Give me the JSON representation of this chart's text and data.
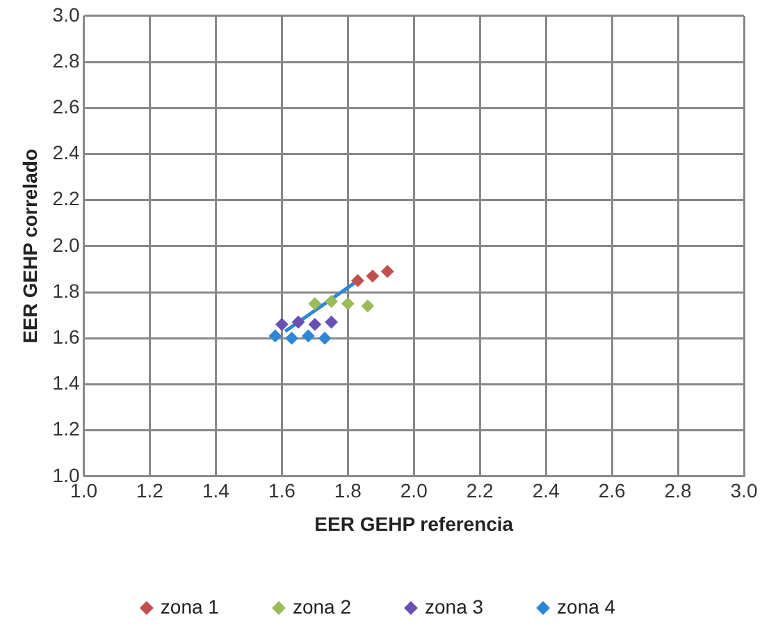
{
  "chart_data": {
    "type": "scatter",
    "xlabel": "EER GEHP referencia",
    "ylabel": "EER GEHP correlado",
    "xlim": [
      1.0,
      3.0
    ],
    "ylim": [
      1.0,
      3.0
    ],
    "xticks": [
      {
        "value": 1.0,
        "label": "1.0"
      },
      {
        "value": 1.2,
        "label": "1.2"
      },
      {
        "value": 1.4,
        "label": "1.4"
      },
      {
        "value": 1.6,
        "label": "1.6"
      },
      {
        "value": 1.8,
        "label": "1.8"
      },
      {
        "value": 2.0,
        "label": "2.0"
      },
      {
        "value": 2.2,
        "label": "2.2"
      },
      {
        "value": 2.4,
        "label": "2.4"
      },
      {
        "value": 2.6,
        "label": "2.6"
      },
      {
        "value": 2.8,
        "label": "2.8"
      },
      {
        "value": 3.0,
        "label": "3.0"
      }
    ],
    "yticks": [
      {
        "value": 1.0,
        "label": "1.0"
      },
      {
        "value": 1.2,
        "label": "1.2"
      },
      {
        "value": 1.4,
        "label": "1.4"
      },
      {
        "value": 1.6,
        "label": "1.6"
      },
      {
        "value": 1.8,
        "label": "1.8"
      },
      {
        "value": 2.0,
        "label": "2.0"
      },
      {
        "value": 2.2,
        "label": "2.2"
      },
      {
        "value": 2.4,
        "label": "2.4"
      },
      {
        "value": 2.6,
        "label": "2.6"
      },
      {
        "value": 2.8,
        "label": "2.8"
      },
      {
        "value": 3.0,
        "label": "3.0"
      }
    ],
    "grid": true,
    "legend": "bottom",
    "marker": "diamond",
    "series": [
      {
        "name": "zona 1",
        "color": "#c0504d",
        "x": [
          1.83,
          1.875,
          1.92
        ],
        "values": [
          1.85,
          1.87,
          1.89
        ]
      },
      {
        "name": "zona 2",
        "color": "#9bbb59",
        "x": [
          1.7,
          1.75,
          1.8,
          1.86
        ],
        "values": [
          1.75,
          1.76,
          1.75,
          1.74
        ]
      },
      {
        "name": "zona 3",
        "color": "#6a4fb5",
        "x": [
          1.6,
          1.65,
          1.7,
          1.75
        ],
        "values": [
          1.66,
          1.67,
          1.66,
          1.67
        ]
      },
      {
        "name": "zona 4",
        "color": "#2e86d6",
        "x": [
          1.58,
          1.63,
          1.68,
          1.73
        ],
        "values": [
          1.61,
          1.6,
          1.61,
          1.6
        ]
      },
      {
        "type": "line",
        "color": "#2e86d6",
        "marker": "none",
        "x": [
          1.61,
          1.84
        ],
        "values": [
          1.63,
          1.86
        ]
      }
    ]
  }
}
